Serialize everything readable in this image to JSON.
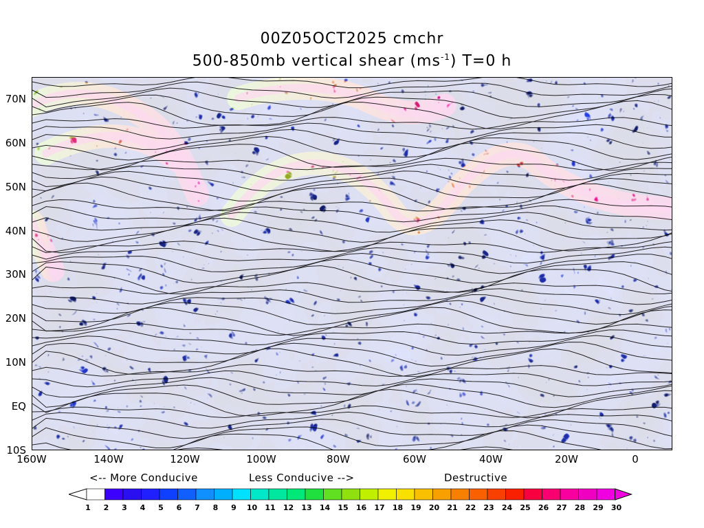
{
  "title": {
    "line1": "00Z05OCT2025 cmchr",
    "line2_prefix": "500-850mb vertical shear (ms",
    "line2_sup": "-1",
    "line2_suffix": ") T=0 h"
  },
  "axes": {
    "lat_labels": [
      "70N",
      "60N",
      "50N",
      "40N",
      "30N",
      "20N",
      "10N",
      "EQ",
      "10S"
    ],
    "lon_labels": [
      "160W",
      "140W",
      "120W",
      "100W",
      "80W",
      "60W",
      "40W",
      "20W",
      "0"
    ]
  },
  "legend": {
    "more_conducive": "<-- More Conducive",
    "less_conducive": "Less Conducive -->",
    "destructive": "Destructive",
    "scale_labels": [
      "1",
      "2",
      "3",
      "4",
      "5",
      "6",
      "7",
      "8",
      "9",
      "10",
      "11",
      "12",
      "13",
      "14",
      "15",
      "16",
      "17",
      "18",
      "19",
      "20",
      "21",
      "22",
      "23",
      "24",
      "25",
      "26",
      "27",
      "28",
      "29",
      "30"
    ],
    "colors": [
      "#ffffff",
      "#3c00ff",
      "#2a10f0",
      "#2020ff",
      "#1040ff",
      "#1060ff",
      "#1090ff",
      "#00b0ff",
      "#00e0ff",
      "#00e8c8",
      "#00e8a0",
      "#00e878",
      "#20e040",
      "#60e020",
      "#90e010",
      "#c0f000",
      "#f0f000",
      "#f8e000",
      "#f8c000",
      "#f8a000",
      "#f88000",
      "#f86000",
      "#f84000",
      "#f82000",
      "#f80040",
      "#f80070",
      "#f800a0",
      "#f000c0",
      "#f000e0"
    ]
  }
}
